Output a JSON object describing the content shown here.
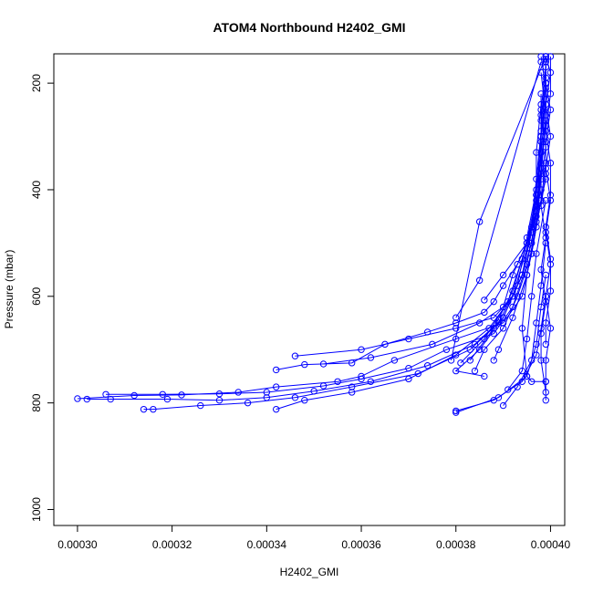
{
  "chart_data": {
    "type": "line",
    "title": "ATOM4 Northbound H2402_GMI",
    "xlabel": "H2402_GMI",
    "ylabel": "Pressure (mbar)",
    "xlim": [
      0.000295,
      0.000403
    ],
    "ylim": [
      1030,
      145
    ],
    "y_reversed": true,
    "grid": false,
    "marker": "open-circle",
    "color": "#0000ff",
    "x_ticks": [
      {
        "value": 0.0003,
        "label": "0.00030"
      },
      {
        "value": 0.00032,
        "label": "0.00032"
      },
      {
        "value": 0.00034,
        "label": "0.00034"
      },
      {
        "value": 0.00036,
        "label": "0.00036"
      },
      {
        "value": 0.00038,
        "label": "0.00038"
      },
      {
        "value": 0.0004,
        "label": "0.00040"
      }
    ],
    "y_ticks": [
      {
        "value": 200,
        "label": "200"
      },
      {
        "value": 400,
        "label": "400"
      },
      {
        "value": 600,
        "label": "600"
      },
      {
        "value": 800,
        "label": "800"
      },
      {
        "value": 1000,
        "label": "1000"
      }
    ],
    "series": [
      {
        "points": [
          [
            0.000399,
            150
          ],
          [
            0.000399,
            200
          ],
          [
            0.000398,
            260
          ],
          [
            0.000399,
            320
          ],
          [
            0.000398,
            380
          ],
          [
            0.000397,
            440
          ],
          [
            0.000396,
            500
          ],
          [
            0.000394,
            560
          ],
          [
            0.000392,
            600
          ],
          [
            0.000388,
            640
          ],
          [
            0.00038,
            660
          ],
          [
            0.00037,
            680
          ],
          [
            0.00036,
            700
          ],
          [
            0.000346,
            712
          ]
        ]
      },
      {
        "points": [
          [
            0.000399,
            160
          ],
          [
            0.000399,
            230
          ],
          [
            0.000398,
            300
          ],
          [
            0.000398,
            370
          ],
          [
            0.000397,
            430
          ],
          [
            0.000395,
            500
          ],
          [
            0.000392,
            560
          ],
          [
            0.00039,
            620
          ],
          [
            0.000385,
            650
          ],
          [
            0.000375,
            690
          ],
          [
            0.000362,
            715
          ],
          [
            0.000352,
            727
          ]
        ]
      },
      {
        "points": [
          [
            0.000398,
            150
          ],
          [
            0.000399,
            210
          ],
          [
            0.000399,
            280
          ],
          [
            0.000398,
            360
          ],
          [
            0.000397,
            430
          ],
          [
            0.000395,
            500
          ],
          [
            0.00039,
            560
          ],
          [
            0.000386,
            607
          ]
        ]
      },
      {
        "points": [
          [
            0.000399,
            170
          ],
          [
            0.000398,
            250
          ],
          [
            0.000398,
            330
          ],
          [
            0.000397,
            410
          ],
          [
            0.000396,
            480
          ],
          [
            0.000393,
            540
          ],
          [
            0.00039,
            580
          ],
          [
            0.000388,
            610
          ],
          [
            0.000386,
            630
          ],
          [
            0.00038,
            650
          ],
          [
            0.000374,
            667
          ],
          [
            0.000365,
            690
          ],
          [
            0.000358,
            725
          ],
          [
            0.000348,
            728
          ],
          [
            0.000342,
            738
          ]
        ]
      },
      {
        "points": [
          [
            0.000398,
            180
          ],
          [
            0.000399,
            260
          ],
          [
            0.000398,
            350
          ],
          [
            0.000398,
            420
          ],
          [
            0.000396,
            520
          ],
          [
            0.000394,
            600
          ],
          [
            0.00039,
            650
          ],
          [
            0.00038,
            680
          ],
          [
            0.000367,
            720
          ],
          [
            0.00036,
            750
          ],
          [
            0.000355,
            760
          ],
          [
            0.000342,
            770
          ],
          [
            0.000334,
            780
          ],
          [
            0.000322,
            785
          ],
          [
            0.000312,
            786
          ],
          [
            0.0003,
            792
          ]
        ]
      },
      {
        "points": [
          [
            0.000399,
            190
          ],
          [
            0.000398,
            270
          ],
          [
            0.000398,
            360
          ],
          [
            0.000397,
            450
          ],
          [
            0.000395,
            540
          ],
          [
            0.000392,
            620
          ],
          [
            0.000388,
            670
          ],
          [
            0.000378,
            700
          ],
          [
            0.00037,
            735
          ],
          [
            0.00036,
            755
          ],
          [
            0.000352,
            768
          ],
          [
            0.00034,
            780
          ],
          [
            0.00033,
            783
          ],
          [
            0.000318,
            784
          ],
          [
            0.000306,
            784
          ]
        ]
      },
      {
        "points": [
          [
            0.000399,
            200
          ],
          [
            0.000398,
            290
          ],
          [
            0.000397,
            380
          ],
          [
            0.000396,
            470
          ],
          [
            0.000394,
            560
          ],
          [
            0.00039,
            640
          ],
          [
            0.000384,
            690
          ],
          [
            0.000374,
            730
          ],
          [
            0.000362,
            760
          ],
          [
            0.00035,
            778
          ],
          [
            0.00034,
            790
          ],
          [
            0.00033,
            795
          ],
          [
            0.000319,
            793
          ],
          [
            0.000307,
            793
          ],
          [
            0.000302,
            793
          ]
        ]
      },
      {
        "points": [
          [
            0.000398,
            220
          ],
          [
            0.000398,
            310
          ],
          [
            0.000397,
            400
          ],
          [
            0.000395,
            490
          ],
          [
            0.000393,
            580
          ],
          [
            0.000389,
            650
          ],
          [
            0.000383,
            700
          ],
          [
            0.000372,
            745
          ],
          [
            0.000358,
            770
          ],
          [
            0.000346,
            790
          ],
          [
            0.000336,
            800
          ],
          [
            0.000326,
            805
          ],
          [
            0.000316,
            812
          ],
          [
            0.000314,
            812
          ]
        ]
      },
      {
        "points": [
          [
            0.000398,
            240
          ],
          [
            0.000397,
            330
          ],
          [
            0.000397,
            420
          ],
          [
            0.000395,
            510
          ],
          [
            0.000392,
            600
          ],
          [
            0.000387,
            660
          ],
          [
            0.00038,
            710
          ],
          [
            0.00037,
            755
          ],
          [
            0.000358,
            780
          ],
          [
            0.000348,
            795
          ],
          [
            0.000342,
            812
          ]
        ]
      },
      {
        "points": [
          [
            0.000398,
            400
          ],
          [
            0.000396,
            480
          ],
          [
            0.000394,
            560
          ],
          [
            0.00039,
            640
          ],
          [
            0.000385,
            700
          ],
          [
            0.00038,
            740
          ],
          [
            0.000386,
            750
          ]
        ]
      },
      {
        "points": [
          [
            0.000399,
            350
          ],
          [
            0.000398,
            420
          ],
          [
            0.000396,
            520
          ],
          [
            0.000393,
            600
          ],
          [
            0.00039,
            660
          ],
          [
            0.000386,
            700
          ],
          [
            0.000384,
            740
          ]
        ]
      },
      {
        "points": [
          [
            0.000398,
            300
          ],
          [
            0.000397,
            410
          ],
          [
            0.000395,
            500
          ],
          [
            0.000392,
            590
          ],
          [
            0.000388,
            660
          ],
          [
            0.000383,
            720
          ]
        ]
      },
      {
        "points": [
          [
            0.000399,
            230
          ],
          [
            0.000398,
            330
          ],
          [
            0.000397,
            440
          ],
          [
            0.000394,
            530
          ],
          [
            0.000391,
            610
          ],
          [
            0.000386,
            680
          ],
          [
            0.000381,
            725
          ]
        ]
      },
      {
        "points": [
          [
            0.000399,
            270
          ],
          [
            0.000398,
            370
          ],
          [
            0.000397,
            470
          ],
          [
            0.000395,
            560
          ],
          [
            0.000392,
            640
          ],
          [
            0.000389,
            700
          ],
          [
            0.000388,
            720
          ]
        ]
      },
      {
        "points": [
          [
            0.000399,
            150
          ],
          [
            0.000385,
            460
          ],
          [
            0.000379,
            720
          ]
        ]
      },
      {
        "points": [
          [
            0.000398,
            160
          ],
          [
            0.000385,
            570
          ],
          [
            0.00038,
            640
          ]
        ]
      },
      {
        "points": [
          [
            0.000399,
            380
          ],
          [
            0.000397,
            460
          ],
          [
            0.000395,
            560
          ],
          [
            0.000394,
            660
          ],
          [
            0.000395,
            750
          ],
          [
            0.000396,
            760
          ],
          [
            0.000399,
            760
          ]
        ]
      },
      {
        "points": [
          [
            0.000399,
            420
          ],
          [
            0.000397,
            520
          ],
          [
            0.000396,
            600
          ],
          [
            0.000395,
            680
          ],
          [
            0.000394,
            740
          ],
          [
            0.000391,
            775
          ]
        ]
      },
      {
        "points": [
          [
            0.000399,
            500
          ],
          [
            0.000398,
            580
          ],
          [
            0.000397,
            650
          ],
          [
            0.000396,
            720
          ],
          [
            0.000393,
            770
          ],
          [
            0.00039,
            805
          ]
        ]
      },
      {
        "points": [
          [
            0.000399,
            560
          ],
          [
            0.000398,
            620
          ],
          [
            0.000397,
            690
          ],
          [
            0.000395,
            750
          ],
          [
            0.000389,
            790
          ],
          [
            0.00038,
            818
          ]
        ]
      },
      {
        "points": [
          [
            0.000399,
            600
          ],
          [
            0.000398,
            660
          ],
          [
            0.000397,
            710
          ],
          [
            0.000394,
            760
          ],
          [
            0.000388,
            795
          ],
          [
            0.00038,
            815
          ]
        ]
      },
      {
        "points": [
          [
            0.000399,
            150
          ],
          [
            0.0004,
            180
          ],
          [
            0.000399,
            240
          ],
          [
            0.0004,
            300
          ],
          [
            0.000399,
            360
          ],
          [
            0.0004,
            420
          ],
          [
            0.000399,
            480
          ],
          [
            0.0004,
            540
          ],
          [
            0.000399,
            600
          ],
          [
            0.0004,
            660
          ],
          [
            0.000399,
            720
          ],
          [
            0.000399,
            760
          ],
          [
            0.000399,
            795
          ]
        ]
      },
      {
        "points": [
          [
            0.000399,
            155
          ],
          [
            0.000399,
            200
          ],
          [
            0.0004,
            250
          ],
          [
            0.000399,
            310
          ],
          [
            0.000399,
            370
          ],
          [
            0.000398,
            430
          ],
          [
            0.000399,
            490
          ],
          [
            0.000398,
            550
          ],
          [
            0.000399,
            610
          ],
          [
            0.000398,
            670
          ],
          [
            0.000398,
            720
          ],
          [
            0.000399,
            780
          ]
        ]
      },
      {
        "points": [
          [
            0.0004,
            150
          ],
          [
            0.0004,
            220
          ],
          [
            0.000399,
            290
          ],
          [
            0.0004,
            350
          ],
          [
            0.0004,
            410
          ],
          [
            0.000399,
            470
          ],
          [
            0.0004,
            530
          ],
          [
            0.0004,
            590
          ],
          [
            0.000399,
            650
          ],
          [
            0.000399,
            690
          ]
        ]
      }
    ]
  }
}
